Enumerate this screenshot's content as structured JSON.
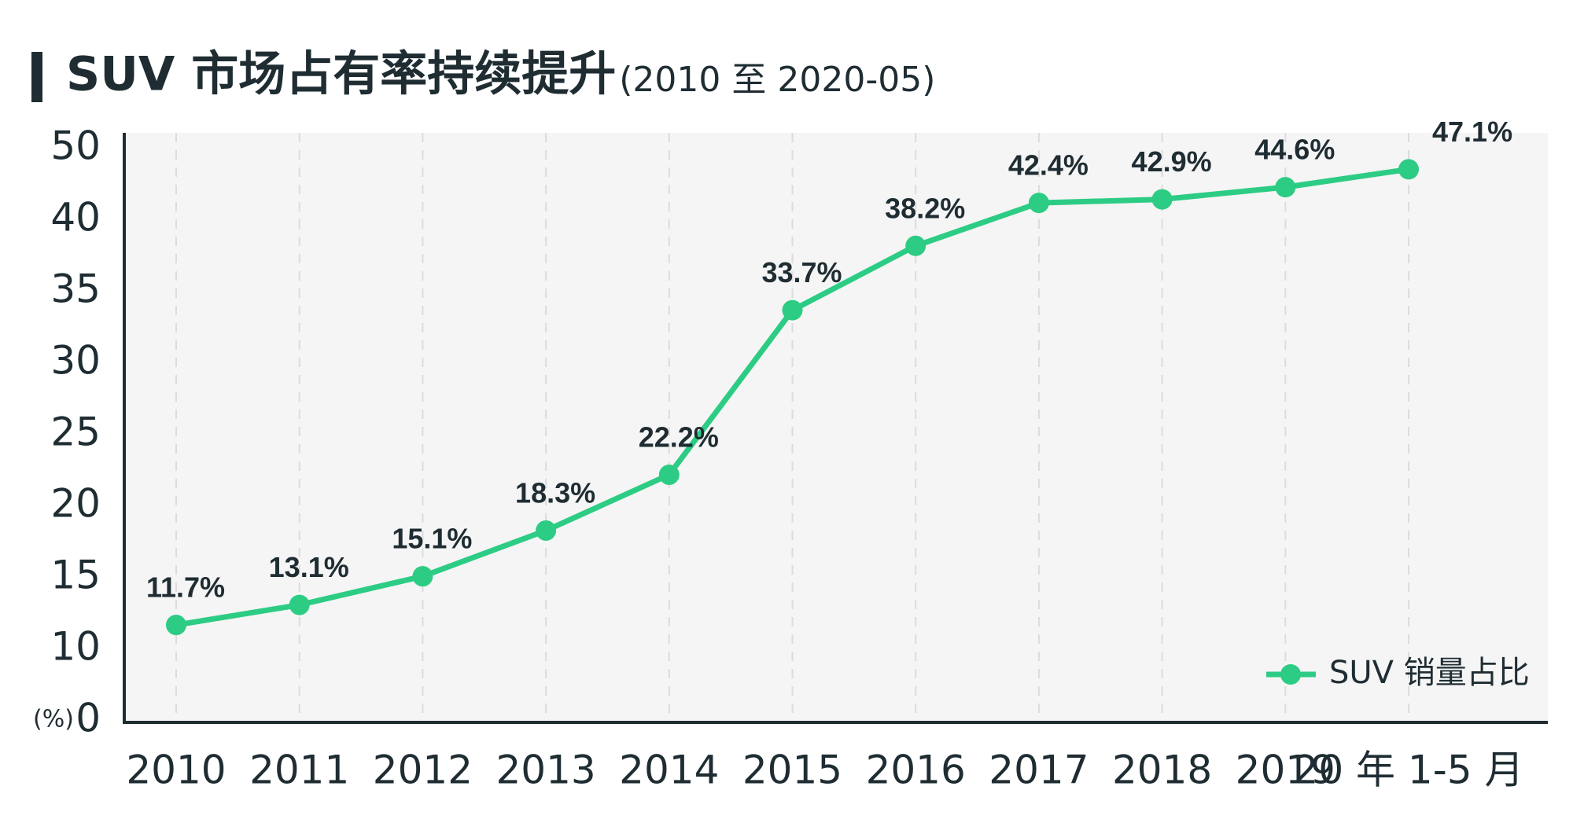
{
  "chart_data": {
    "type": "line",
    "title": "SUV 市场占有率持续提升",
    "subtitle": "(2010 至 2020-05)",
    "y_label": "(%)",
    "categories": [
      "2010",
      "2011",
      "2012",
      "2013",
      "2014",
      "2015",
      "2016",
      "2017",
      "2018",
      "2019",
      "20 年 1-5 月"
    ],
    "series": [
      {
        "name": "SUV 销量占比",
        "color": "#2dcc84",
        "values": [
          11.7,
          13.1,
          15.1,
          18.3,
          22.2,
          33.7,
          38.2,
          42.4,
          42.9,
          44.6,
          47.1
        ],
        "value_labels": [
          "11.7%",
          "13.1%",
          "15.1%",
          "18.3%",
          "22.2%",
          "33.7%",
          "38.2%",
          "42.4%",
          "42.9%",
          "44.6%",
          "47.1%"
        ]
      }
    ],
    "ylim": [
      0,
      50
    ],
    "yticks": [
      0,
      10,
      15,
      20,
      25,
      30,
      35,
      40,
      50
    ],
    "grid": true,
    "legend": "bottom-right"
  }
}
